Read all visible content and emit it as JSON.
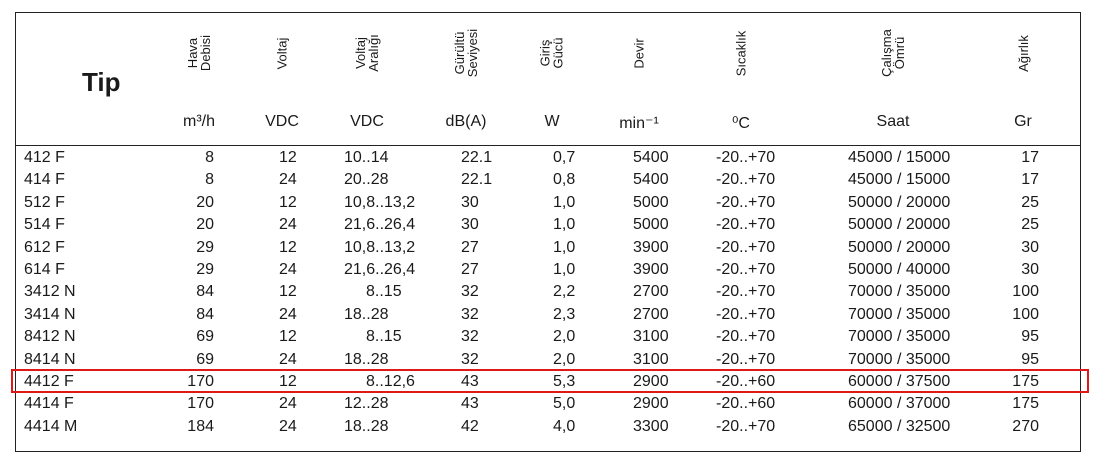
{
  "header": {
    "tip": "Tip",
    "columns": [
      {
        "label": "Hava\nDebisi",
        "unit": "m³/h"
      },
      {
        "label": "Voltaj",
        "unit": "VDC"
      },
      {
        "label": "Voltaj\nAralığı",
        "unit": "VDC"
      },
      {
        "label": "Gürültü\nSeviyesi",
        "unit": "dB(A)"
      },
      {
        "label": "Giriş\nGücü",
        "unit": "W"
      },
      {
        "label": "Devir",
        "unit": "min⁻¹"
      },
      {
        "label": "Sıcaklık",
        "unit": "⁰C"
      },
      {
        "label": "Çalışma\nÖmrü",
        "unit": "Saat"
      },
      {
        "label": "Ağırlık",
        "unit": "Gr"
      }
    ]
  },
  "rows": [
    [
      "412 F",
      "8",
      "12",
      "10..14",
      "22.1",
      "0,7",
      "5400",
      "-20..+70",
      "45000 / 15000",
      "17"
    ],
    [
      "414 F",
      "8",
      "24",
      "20..28",
      "22.1",
      "0,8",
      "5400",
      "-20..+70",
      "45000 / 15000",
      "17"
    ],
    [
      "512 F",
      "20",
      "12",
      "10,8..13,2",
      "30",
      "1,0",
      "5000",
      "-20..+70",
      "50000 / 20000",
      "25"
    ],
    [
      "514 F",
      "20",
      "24",
      "21,6..26,4",
      "30",
      "1,0",
      "5000",
      "-20..+70",
      "50000 / 20000",
      "25"
    ],
    [
      "612 F",
      "29",
      "12",
      "10,8..13,2",
      "27",
      "1,0",
      "3900",
      "-20..+70",
      "50000 / 20000",
      "30"
    ],
    [
      "614 F",
      "29",
      "24",
      "21,6..26,4",
      "27",
      "1,0",
      "3900",
      "-20..+70",
      "50000 / 40000",
      "30"
    ],
    [
      "3412 N",
      "84",
      "12",
      "8..15",
      "32",
      "2,2",
      "2700",
      "-20..+70",
      "70000 / 35000",
      "100"
    ],
    [
      "3414 N",
      "84",
      "24",
      "18..28",
      "32",
      "2,3",
      "2700",
      "-20..+70",
      "70000 / 35000",
      "100"
    ],
    [
      "8412 N",
      "69",
      "12",
      "8..15",
      "32",
      "2,0",
      "3100",
      "-20..+70",
      "70000 / 35000",
      "95"
    ],
    [
      "8414 N",
      "69",
      "24",
      "18..28",
      "32",
      "2,0",
      "3100",
      "-20..+70",
      "70000 / 35000",
      "95"
    ],
    [
      "4412 F",
      "170",
      "12",
      "8..12,6",
      "43",
      "5,3",
      "2900",
      "-20..+60",
      "60000 / 37500",
      "175"
    ],
    [
      "4414 F",
      "170",
      "24",
      "12..28",
      "43",
      "5,0",
      "2900",
      "-20..+60",
      "60000 / 37000",
      "175"
    ],
    [
      "4414 M",
      "184",
      "24",
      "18..28",
      "42",
      "4,0",
      "3300",
      "-20..+70",
      "65000 / 32500",
      "270"
    ]
  ],
  "highlight_row_index": 10,
  "highlight_color": "#e01818"
}
